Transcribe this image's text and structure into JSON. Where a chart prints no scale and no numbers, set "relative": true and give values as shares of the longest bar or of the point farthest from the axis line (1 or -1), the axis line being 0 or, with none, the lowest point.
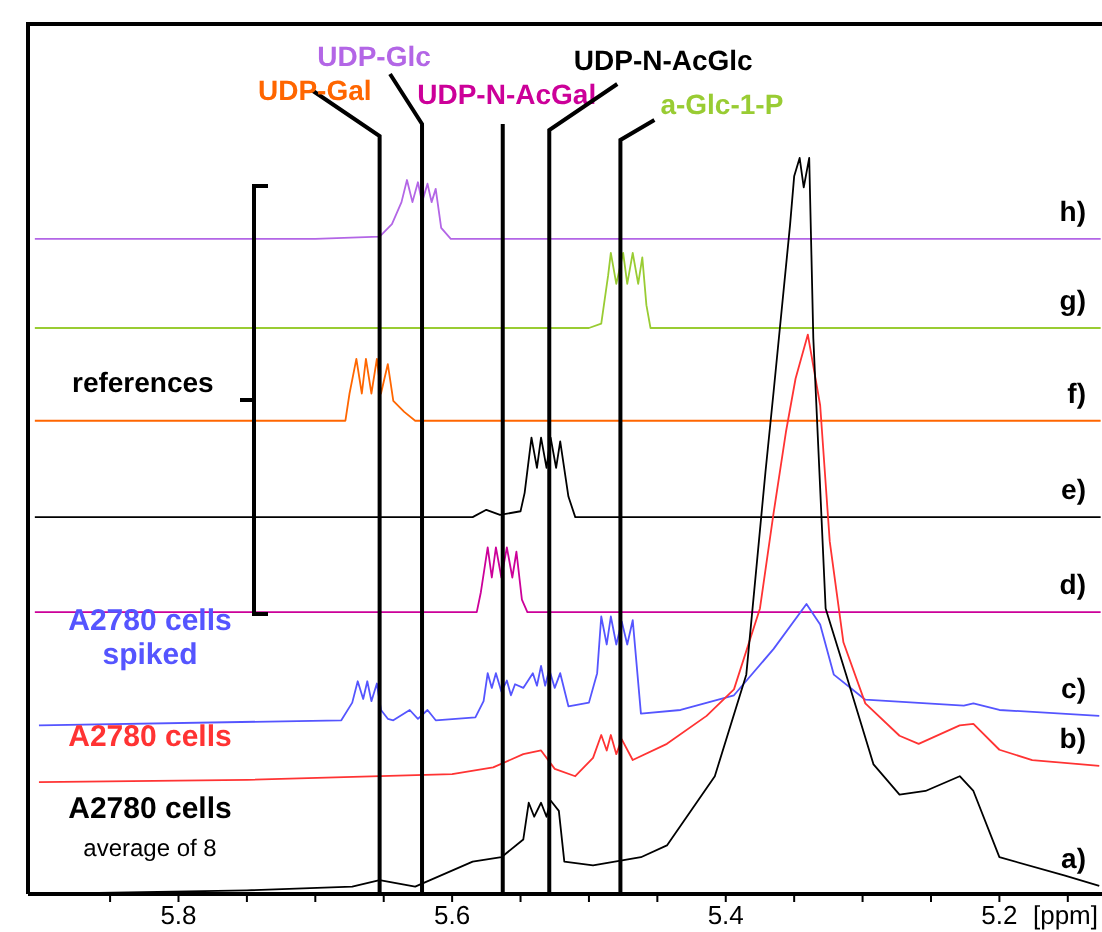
{
  "chart_data": {
    "type": "line",
    "relative": true,
    "xlabel": "[ppm]",
    "xlim": [
      5.91,
      5.125
    ],
    "xticks": [
      {
        "value": 5.85,
        "label": null
      },
      5.8,
      {
        "value": 5.75,
        "label": null
      },
      {
        "value": 5.7,
        "label": null
      },
      {
        "value": 5.65,
        "label": null
      },
      5.6,
      {
        "value": 5.55,
        "label": null
      },
      {
        "value": 5.5,
        "label": null
      },
      {
        "value": 5.45,
        "label": null
      },
      5.4,
      {
        "value": 5.35,
        "label": null
      },
      {
        "value": 5.3,
        "label": null
      },
      {
        "value": 5.25,
        "label": null
      },
      5.2,
      {
        "value": 5.15,
        "label": null
      }
    ],
    "marker": "none",
    "line_style": "solid",
    "series": [
      {
        "name": "h)",
        "color": "#b366e6",
        "x": [
          5.905,
          5.7,
          5.653,
          5.644,
          5.637,
          5.633,
          5.629,
          5.625,
          5.622,
          5.618,
          5.615,
          5.612,
          5.608,
          5.601,
          5.3,
          5.126
        ],
        "values": [
          0.89,
          0.89,
          0.893,
          0.91,
          0.94,
          0.97,
          0.94,
          0.967,
          0.94,
          0.965,
          0.94,
          0.958,
          0.905,
          0.89,
          0.89,
          0.89
        ]
      },
      {
        "name": "g)",
        "color": "#99cc33",
        "x": [
          5.905,
          5.5,
          5.491,
          5.486,
          5.484,
          5.48,
          5.475,
          5.472,
          5.468,
          5.464,
          5.461,
          5.458,
          5.455,
          5.126
        ],
        "values": [
          0.769,
          0.769,
          0.775,
          0.84,
          0.871,
          0.829,
          0.871,
          0.829,
          0.871,
          0.829,
          0.865,
          0.8,
          0.769,
          0.769
        ]
      },
      {
        "name": "f)",
        "color": "#ff6600",
        "x": [
          5.905,
          5.678,
          5.675,
          5.67,
          5.666,
          5.663,
          5.659,
          5.655,
          5.652,
          5.647,
          5.643,
          5.635,
          5.627,
          5.126
        ],
        "values": [
          0.643,
          0.643,
          0.68,
          0.727,
          0.68,
          0.727,
          0.68,
          0.727,
          0.68,
          0.72,
          0.67,
          0.655,
          0.643,
          0.643
        ]
      },
      {
        "name": "e)",
        "color": "#000000",
        "x": [
          5.905,
          5.585,
          5.575,
          5.565,
          5.55,
          5.547,
          5.542,
          5.538,
          5.535,
          5.531,
          5.528,
          5.524,
          5.521,
          5.515,
          5.51,
          5.126
        ],
        "values": [
          0.512,
          0.512,
          0.522,
          0.515,
          0.52,
          0.545,
          0.62,
          0.579,
          0.62,
          0.579,
          0.62,
          0.579,
          0.615,
          0.54,
          0.512,
          0.512
        ]
      },
      {
        "name": "d)",
        "color": "#cc0099",
        "x": [
          5.905,
          5.582,
          5.579,
          5.574,
          5.571,
          5.568,
          5.564,
          5.56,
          5.556,
          5.553,
          5.549,
          5.545,
          5.126
        ],
        "values": [
          0.383,
          0.383,
          0.41,
          0.471,
          0.43,
          0.471,
          0.43,
          0.471,
          0.43,
          0.465,
          0.4,
          0.383,
          0.383
        ]
      },
      {
        "name": "c)",
        "color": "#5555ff",
        "x": [
          5.902,
          5.681,
          5.673,
          5.669,
          5.665,
          5.662,
          5.659,
          5.655,
          5.652,
          5.647,
          5.643,
          5.631,
          5.625,
          5.618,
          5.612,
          5.583,
          5.577,
          5.574,
          5.571,
          5.568,
          5.564,
          5.56,
          5.557,
          5.554,
          5.548,
          5.541,
          5.538,
          5.535,
          5.532,
          5.529,
          5.525,
          5.521,
          5.515,
          5.5,
          5.494,
          5.491,
          5.487,
          5.484,
          5.48,
          5.476,
          5.472,
          5.468,
          5.462,
          5.433,
          5.394,
          5.365,
          5.341,
          5.331,
          5.321,
          5.298,
          5.226,
          5.219,
          5.2,
          5.127
        ],
        "values": [
          0.229,
          0.236,
          0.26,
          0.289,
          0.265,
          0.289,
          0.262,
          0.286,
          0.25,
          0.238,
          0.236,
          0.25,
          0.238,
          0.25,
          0.236,
          0.24,
          0.262,
          0.3,
          0.28,
          0.3,
          0.275,
          0.29,
          0.27,
          0.285,
          0.28,
          0.3,
          0.283,
          0.31,
          0.283,
          0.305,
          0.28,
          0.3,
          0.255,
          0.26,
          0.3,
          0.377,
          0.339,
          0.377,
          0.339,
          0.37,
          0.339,
          0.372,
          0.245,
          0.25,
          0.27,
          0.333,
          0.394,
          0.366,
          0.298,
          0.264,
          0.256,
          0.259,
          0.25,
          0.242
        ]
      },
      {
        "name": "b)",
        "color": "#ff3333",
        "x": [
          5.902,
          5.75,
          5.6,
          5.57,
          5.548,
          5.535,
          5.525,
          5.51,
          5.497,
          5.491,
          5.487,
          5.484,
          5.48,
          5.476,
          5.468,
          5.443,
          5.414,
          5.394,
          5.375,
          5.365,
          5.356,
          5.349,
          5.34,
          5.331,
          5.324,
          5.314,
          5.298,
          5.273,
          5.259,
          5.229,
          5.219,
          5.2,
          5.176,
          5.127
        ],
        "values": [
          0.152,
          0.155,
          0.163,
          0.172,
          0.19,
          0.195,
          0.17,
          0.16,
          0.185,
          0.216,
          0.195,
          0.216,
          0.19,
          0.21,
          0.182,
          0.204,
          0.242,
          0.278,
          0.388,
          0.518,
          0.628,
          0.7,
          0.76,
          0.664,
          0.479,
          0.342,
          0.259,
          0.215,
          0.204,
          0.229,
          0.231,
          0.196,
          0.182,
          0.174
        ]
      },
      {
        "name": "a)",
        "color": "#000000",
        "x": [
          5.902,
          5.75,
          5.673,
          5.653,
          5.627,
          5.585,
          5.564,
          5.548,
          5.544,
          5.54,
          5.535,
          5.531,
          5.528,
          5.522,
          5.518,
          5.497,
          5.462,
          5.443,
          5.408,
          5.385,
          5.371,
          5.365,
          5.353,
          5.35,
          5.346,
          5.343,
          5.339,
          5.336,
          5.327,
          5.312,
          5.292,
          5.273,
          5.254,
          5.229,
          5.219,
          5.2,
          5.152,
          5.127
        ],
        "values": [
          0,
          0.005,
          0.01,
          0.019,
          0.01,
          0.044,
          0.05,
          0.074,
          0.124,
          0.105,
          0.124,
          0.105,
          0.127,
          0.113,
          0.044,
          0.039,
          0.05,
          0.066,
          0.16,
          0.298,
          0.573,
          0.683,
          0.909,
          0.975,
          1,
          0.96,
          1,
          0.755,
          0.388,
          0.298,
          0.176,
          0.135,
          0.14,
          0.16,
          0.14,
          0.05,
          0.025,
          0.011
        ]
      }
    ],
    "ref_lines": [
      {
        "axis": "x",
        "value": 5.653,
        "label": "UDP-Gal",
        "color": "#000000"
      },
      {
        "axis": "x",
        "value": 5.622,
        "label": "UDP-Glc",
        "color": "#000000"
      },
      {
        "axis": "x",
        "value": 5.563,
        "label": "UDP-N-AcGal",
        "color": "#000000"
      },
      {
        "axis": "x",
        "value": 5.529,
        "label": "UDP-N-AcGlc",
        "color": "#000000"
      },
      {
        "axis": "x",
        "value": 5.477,
        "label": "a-Glc-1-P",
        "color": "#000000"
      }
    ],
    "annotations": [
      "references",
      "A2780 cells spiked",
      "A2780 cells",
      "A2780 cells",
      "average of 8"
    ]
  }
}
